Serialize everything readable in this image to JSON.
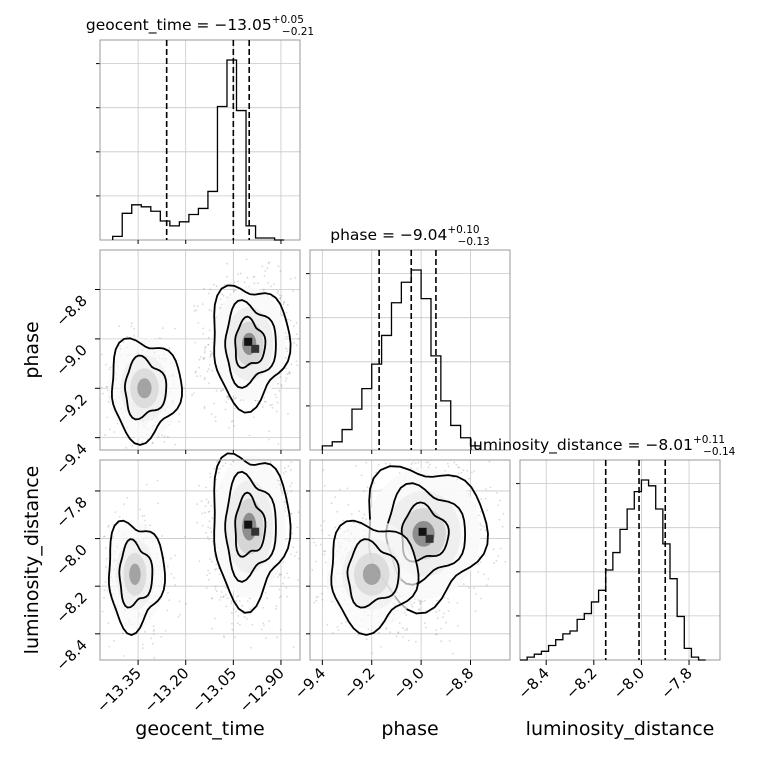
{
  "chart_data": {
    "type": "corner",
    "parameters": [
      {
        "name": "geocent_time",
        "axis_label": "geocent_time",
        "range": [
          -13.47,
          -12.84
        ],
        "ticks": [
          -13.35,
          -13.2,
          -13.05,
          -12.9
        ],
        "tick_labels": [
          "−13.35",
          "−13.20",
          "−13.05",
          "−12.90"
        ],
        "title_main": "geocent_time = −13.05",
        "title_sup": "+0.05",
        "title_sub": "−0.21",
        "quantiles": [
          -13.26,
          -13.05,
          -13.0
        ]
      },
      {
        "name": "phase",
        "axis_label": "phase",
        "range": [
          -9.45,
          -8.64
        ],
        "ticks": [
          -9.4,
          -9.2,
          -9.0,
          -8.8
        ],
        "tick_labels": [
          "−9.4",
          "−9.2",
          "−9.0",
          "−8.8"
        ],
        "title_main": "phase = −9.04",
        "title_sup": "+0.10",
        "title_sub": "−0.13",
        "quantiles": [
          -9.17,
          -9.04,
          -8.94
        ]
      },
      {
        "name": "luminosity_distance",
        "axis_label": "luminosity_distance",
        "range": [
          -8.51,
          -7.67
        ],
        "ticks": [
          -8.4,
          -8.2,
          -8.0,
          -7.8
        ],
        "tick_labels": [
          "−8.4",
          "−8.2",
          "−8.0",
          "−7.8"
        ],
        "title_main": "luminosity_distance = −8.01",
        "title_sup": "+0.11",
        "title_sub": "−0.14",
        "quantiles": [
          -8.15,
          -8.01,
          -7.9
        ]
      }
    ],
    "histograms": [
      {
        "parameter": "geocent_time",
        "bin_edges": [
          -13.43,
          -13.4,
          -13.37,
          -13.34,
          -13.31,
          -13.28,
          -13.25,
          -13.22,
          -13.19,
          -13.16,
          -13.13,
          -13.1,
          -13.07,
          -13.04,
          -13.01,
          -12.98,
          -12.95,
          -12.92,
          -12.89
        ],
        "counts": [
          0.9,
          6.6,
          8.7,
          8.2,
          7.1,
          4.7,
          3.5,
          4.5,
          6.3,
          7.8,
          12.0,
          33.0,
          44.5,
          32.0,
          3.5,
          0.5,
          0.5,
          0.0
        ]
      },
      {
        "parameter": "phase",
        "bin_edges": [
          -9.4,
          -9.36,
          -9.32,
          -9.28,
          -9.24,
          -9.2,
          -9.16,
          -9.12,
          -9.08,
          -9.04,
          -9.0,
          -8.96,
          -8.92,
          -8.88,
          -8.84,
          -8.8,
          -8.76
        ],
        "counts": [
          1,
          2,
          5,
          10,
          15,
          21,
          28,
          36,
          41,
          44,
          37,
          23,
          12,
          6,
          3,
          1
        ]
      },
      {
        "parameter": "luminosity_distance",
        "bin_edges": [
          -8.51,
          -8.48,
          -8.45,
          -8.42,
          -8.39,
          -8.36,
          -8.33,
          -8.3,
          -8.27,
          -8.24,
          -8.21,
          -8.18,
          -8.15,
          -8.12,
          -8.09,
          -8.06,
          -8.03,
          -8.0,
          -7.97,
          -7.94,
          -7.91,
          -7.88,
          -7.85,
          -7.82,
          -7.79,
          -7.76,
          -7.73
        ],
        "counts": [
          0,
          1,
          2,
          3,
          5,
          7,
          9,
          10,
          14,
          16,
          20,
          24,
          31,
          37,
          45,
          52,
          58,
          62,
          60,
          52,
          40,
          28,
          15,
          4,
          1,
          0
        ]
      }
    ],
    "contour_blobs": [
      {
        "x": "geocent_time",
        "y": "phase",
        "center": [
          -13.0,
          -9.02
        ],
        "spread": [
          0.05,
          0.1
        ],
        "weight": 1.0
      },
      {
        "x": "geocent_time",
        "y": "phase",
        "center": [
          -13.33,
          -9.2
        ],
        "spread": [
          0.05,
          0.09
        ],
        "weight": 0.35
      },
      {
        "x": "geocent_time",
        "y": "luminosity_distance",
        "center": [
          -13.0,
          -7.95
        ],
        "spread": [
          0.05,
          0.13
        ],
        "weight": 1.0
      },
      {
        "x": "geocent_time",
        "y": "luminosity_distance",
        "center": [
          -13.36,
          -8.15
        ],
        "spread": [
          0.04,
          0.1
        ],
        "weight": 0.35
      },
      {
        "x": "phase",
        "y": "luminosity_distance",
        "center": [
          -8.99,
          -7.98
        ],
        "spread": [
          0.1,
          0.12
        ],
        "weight": 1.0
      },
      {
        "x": "phase",
        "y": "luminosity_distance",
        "center": [
          -9.2,
          -8.15
        ],
        "spread": [
          0.08,
          0.1
        ],
        "weight": 0.45
      }
    ],
    "grid": true,
    "legend": "none"
  }
}
